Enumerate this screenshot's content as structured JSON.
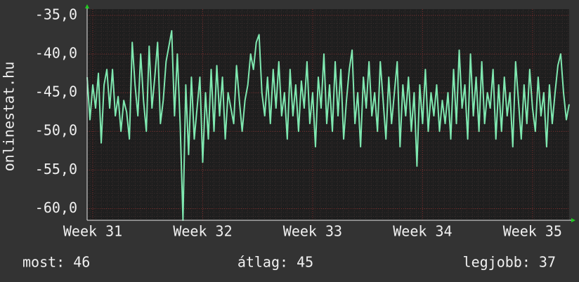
{
  "chart_data": {
    "type": "line",
    "y_label": "onlinestat.hu",
    "color": "#7fe8b0",
    "ylim": [
      -61.5,
      -34.2
    ],
    "yticks": [
      {
        "value": -35,
        "label": "-35,0"
      },
      {
        "value": -40,
        "label": "-40,0"
      },
      {
        "value": -45,
        "label": "-45,0"
      },
      {
        "value": -50,
        "label": "-50,0"
      },
      {
        "value": -55,
        "label": "-55,0"
      },
      {
        "value": -60,
        "label": "-60,0"
      }
    ],
    "xlim": [
      0,
      171
    ],
    "xticks": [
      {
        "value": 2,
        "label": "Week 31"
      },
      {
        "value": 41,
        "label": "Week 32"
      },
      {
        "value": 80,
        "label": "Week 33"
      },
      {
        "value": 119,
        "label": "Week 34"
      },
      {
        "value": 158,
        "label": "Week 35"
      }
    ],
    "grid": true,
    "values": [
      -43,
      -48.5,
      -44,
      -47,
      -42.5,
      -51.5,
      -44,
      -42,
      -47,
      -42,
      -48,
      -45.5,
      -50,
      -46,
      -47.5,
      -51,
      -38.5,
      -44,
      -48,
      -40,
      -46,
      -50,
      -39,
      -47,
      -43,
      -38.5,
      -49,
      -46,
      -41,
      -39,
      -37,
      -48,
      -40,
      -49,
      -61.5,
      -44,
      -53,
      -43,
      -51,
      -47,
      -43,
      -54,
      -45,
      -51,
      -42,
      -50,
      -41.5,
      -48,
      -43,
      -51,
      -45,
      -47,
      -49,
      -41.5,
      -46,
      -50,
      -46,
      -44,
      -40,
      -42,
      -38.5,
      -37.5,
      -45,
      -48,
      -43,
      -49,
      -42,
      -47,
      -41,
      -48,
      -45,
      -51,
      -42,
      -48,
      -44,
      -50,
      -43.5,
      -47,
      -41,
      -49,
      -45,
      -52,
      -43,
      -47,
      -40,
      -49,
      -44,
      -50,
      -41,
      -48,
      -42,
      -51,
      -46,
      -42,
      -39.5,
      -49,
      -45,
      -52,
      -43,
      -47,
      -41,
      -48,
      -45,
      -50,
      -41,
      -46,
      -51,
      -43,
      -49,
      -45,
      -41,
      -52,
      -44,
      -48,
      -43,
      -50,
      -45,
      -54.5,
      -44,
      -49,
      -42,
      -50,
      -45,
      -48,
      -44,
      -50,
      -46,
      -49,
      -45,
      -51,
      -42,
      -49,
      -39.5,
      -47,
      -44,
      -51,
      -40,
      -48,
      -43,
      -50,
      -41,
      -49,
      -45,
      -47,
      -42,
      -51,
      -44,
      -50,
      -43,
      -48,
      -45,
      -52,
      -41,
      -46,
      -51,
      -44,
      -49,
      -42,
      -47,
      -50,
      -43,
      -48,
      -45,
      -52,
      -44,
      -49,
      -45,
      -41.5,
      -40,
      -45,
      -48.5,
      -46.5
    ],
    "footer": [
      "most: 46",
      "átlag: 45",
      "legjobb: 37"
    ]
  }
}
